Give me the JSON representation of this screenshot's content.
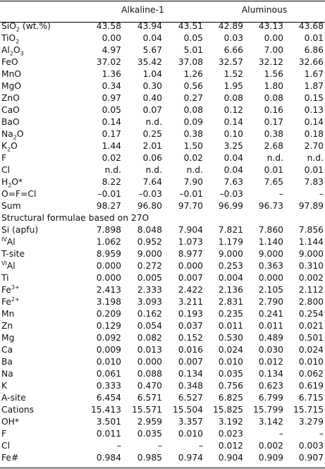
{
  "header": {
    "group1": "Alkaline-1",
    "group2": "Aluminous"
  },
  "oxide_rows": [
    {
      "label": "SiO<sub>2</sub> (wt.%)",
      "values": [
        "43.58",
        "43.94",
        "43.51",
        "42.89",
        "43.13",
        "43.68"
      ]
    },
    {
      "label": "TiO<sub>2</sub>",
      "values": [
        "0.00",
        "0.04",
        "0.05",
        "0.03",
        "0.00",
        "0.01"
      ]
    },
    {
      "label": "Al<sub>2</sub>O<sub>3</sub>",
      "values": [
        "4.97",
        "5.67",
        "5.01",
        "6.66",
        "7.00",
        "6.86"
      ]
    },
    {
      "label": "FeO",
      "values": [
        "37.02",
        "35.42",
        "37.08",
        "32.57",
        "32.12",
        "32.66"
      ]
    },
    {
      "label": "MnO",
      "values": [
        "1.36",
        "1.04",
        "1.26",
        "1.52",
        "1.56",
        "1.67"
      ]
    },
    {
      "label": "MgO",
      "values": [
        "0.34",
        "0.30",
        "0.56",
        "1.95",
        "1.80",
        "1.87"
      ]
    },
    {
      "label": "ZnO",
      "values": [
        "0.97",
        "0.40",
        "0.27",
        "0.08",
        "0.08",
        "0.15"
      ]
    },
    {
      "label": "CaO",
      "values": [
        "0.05",
        "0.07",
        "0.08",
        "0.12",
        "0.16",
        "0.13"
      ]
    },
    {
      "label": "BaO",
      "values": [
        "0.14",
        "n.d.",
        "0.09",
        "0.14",
        "0.17",
        "0.14"
      ]
    },
    {
      "label": "Na<sub>2</sub>O",
      "values": [
        "0.17",
        "0.25",
        "0.38",
        "0.10",
        "0.38",
        "0.18"
      ]
    },
    {
      "label": "K<sub>2</sub>O",
      "values": [
        "1.44",
        "2.01",
        "1.50",
        "3.25",
        "2.68",
        "2.70"
      ]
    },
    {
      "label": "F",
      "values": [
        "0.02",
        "0.06",
        "0.02",
        "0.04",
        "n.d.",
        "n.d."
      ]
    },
    {
      "label": "Cl",
      "values": [
        "n.d.",
        "n.d.",
        "n.d.",
        "0.04",
        "0.01",
        "0.01"
      ]
    },
    {
      "label": "H<sub>2</sub>O*",
      "values": [
        "8.22",
        "7.64",
        "7.90",
        "7.63",
        "7.65",
        "7.83"
      ]
    },
    {
      "label": "O=F=Cl",
      "values": [
        "–0.01",
        "–0.03",
        "–0.01",
        "–0.03",
        "–",
        "–"
      ]
    },
    {
      "label": "Sum",
      "values": [
        "98.27",
        "96.80",
        "97.70",
        "96.99",
        "96.73",
        "97.89"
      ]
    }
  ],
  "section_title": "Structural formulae based on 27O",
  "formula_rows": [
    {
      "label": "Si (apfu)",
      "values": [
        "7.898",
        "8.048",
        "7.904",
        "7.821",
        "7.860",
        "7.856"
      ]
    },
    {
      "label": "<sup>IV</sup>Al",
      "values": [
        "1.062",
        "0.952",
        "1.073",
        "1.179",
        "1.140",
        "1.144"
      ]
    },
    {
      "label": "T-site",
      "values": [
        "8.959",
        "9.000",
        "8.977",
        "9.000",
        "9.000",
        "9.000"
      ]
    },
    {
      "label": "<sup>VI</sup>Al",
      "values": [
        "0.000",
        "0.272",
        "0.000",
        "0.253",
        "0.363",
        "0.310"
      ]
    },
    {
      "label": "Ti",
      "values": [
        "0.000",
        "0.005",
        "0.007",
        "0.004",
        "0.000",
        "0.002"
      ]
    },
    {
      "label": "Fe<sup>3+</sup>",
      "values": [
        "2.413",
        "2.333",
        "2.422",
        "2.136",
        "2.105",
        "2.112"
      ]
    },
    {
      "label": "Fe<sup>2+</sup>",
      "values": [
        "3.198",
        "3.093",
        "3.211",
        "2.831",
        "2.790",
        "2.800"
      ]
    },
    {
      "label": "Mn",
      "values": [
        "0.209",
        "0.162",
        "0.193",
        "0.235",
        "0.241",
        "0.254"
      ]
    },
    {
      "label": "Zn",
      "values": [
        "0.129",
        "0.054",
        "0.037",
        "0.011",
        "0.011",
        "0.021"
      ]
    },
    {
      "label": "Mg",
      "values": [
        "0.092",
        "0.082",
        "0.152",
        "0.530",
        "0.489",
        "0.501"
      ]
    },
    {
      "label": "Ca",
      "values": [
        "0.009",
        "0.013",
        "0.016",
        "0.024",
        "0.030",
        "0.024"
      ]
    },
    {
      "label": "Ba",
      "values": [
        "0.010",
        "0.000",
        "0.007",
        "0.010",
        "0.012",
        "0.010"
      ]
    },
    {
      "label": "Na",
      "values": [
        "0.061",
        "0.088",
        "0.134",
        "0.035",
        "0.134",
        "0.062"
      ]
    },
    {
      "label": "K",
      "values": [
        "0.333",
        "0.470",
        "0.348",
        "0.756",
        "0.623",
        "0.619"
      ]
    },
    {
      "label": "A-site",
      "values": [
        "6.454",
        "6.571",
        "6.527",
        "6.825",
        "6.799",
        "6.715"
      ]
    },
    {
      "label": "Cations",
      "values": [
        "15.413",
        "15.571",
        "15.504",
        "15.825",
        "15.799",
        "15.715"
      ]
    },
    {
      "label": "OH*",
      "values": [
        "3.501",
        "2.959",
        "3.357",
        "3.192",
        "3.142",
        "3.279"
      ]
    },
    {
      "label": "F",
      "values": [
        "0.011",
        "0.035",
        "0.010",
        "0.023",
        "–",
        "–"
      ]
    },
    {
      "label": "Cl",
      "values": [
        "–",
        "–",
        "–",
        "0.012",
        "0.002",
        "0.003"
      ]
    },
    {
      "label": "Fe#",
      "values": [
        "0.984",
        "0.985",
        "0.974",
        "0.904",
        "0.909",
        "0.907"
      ]
    }
  ]
}
